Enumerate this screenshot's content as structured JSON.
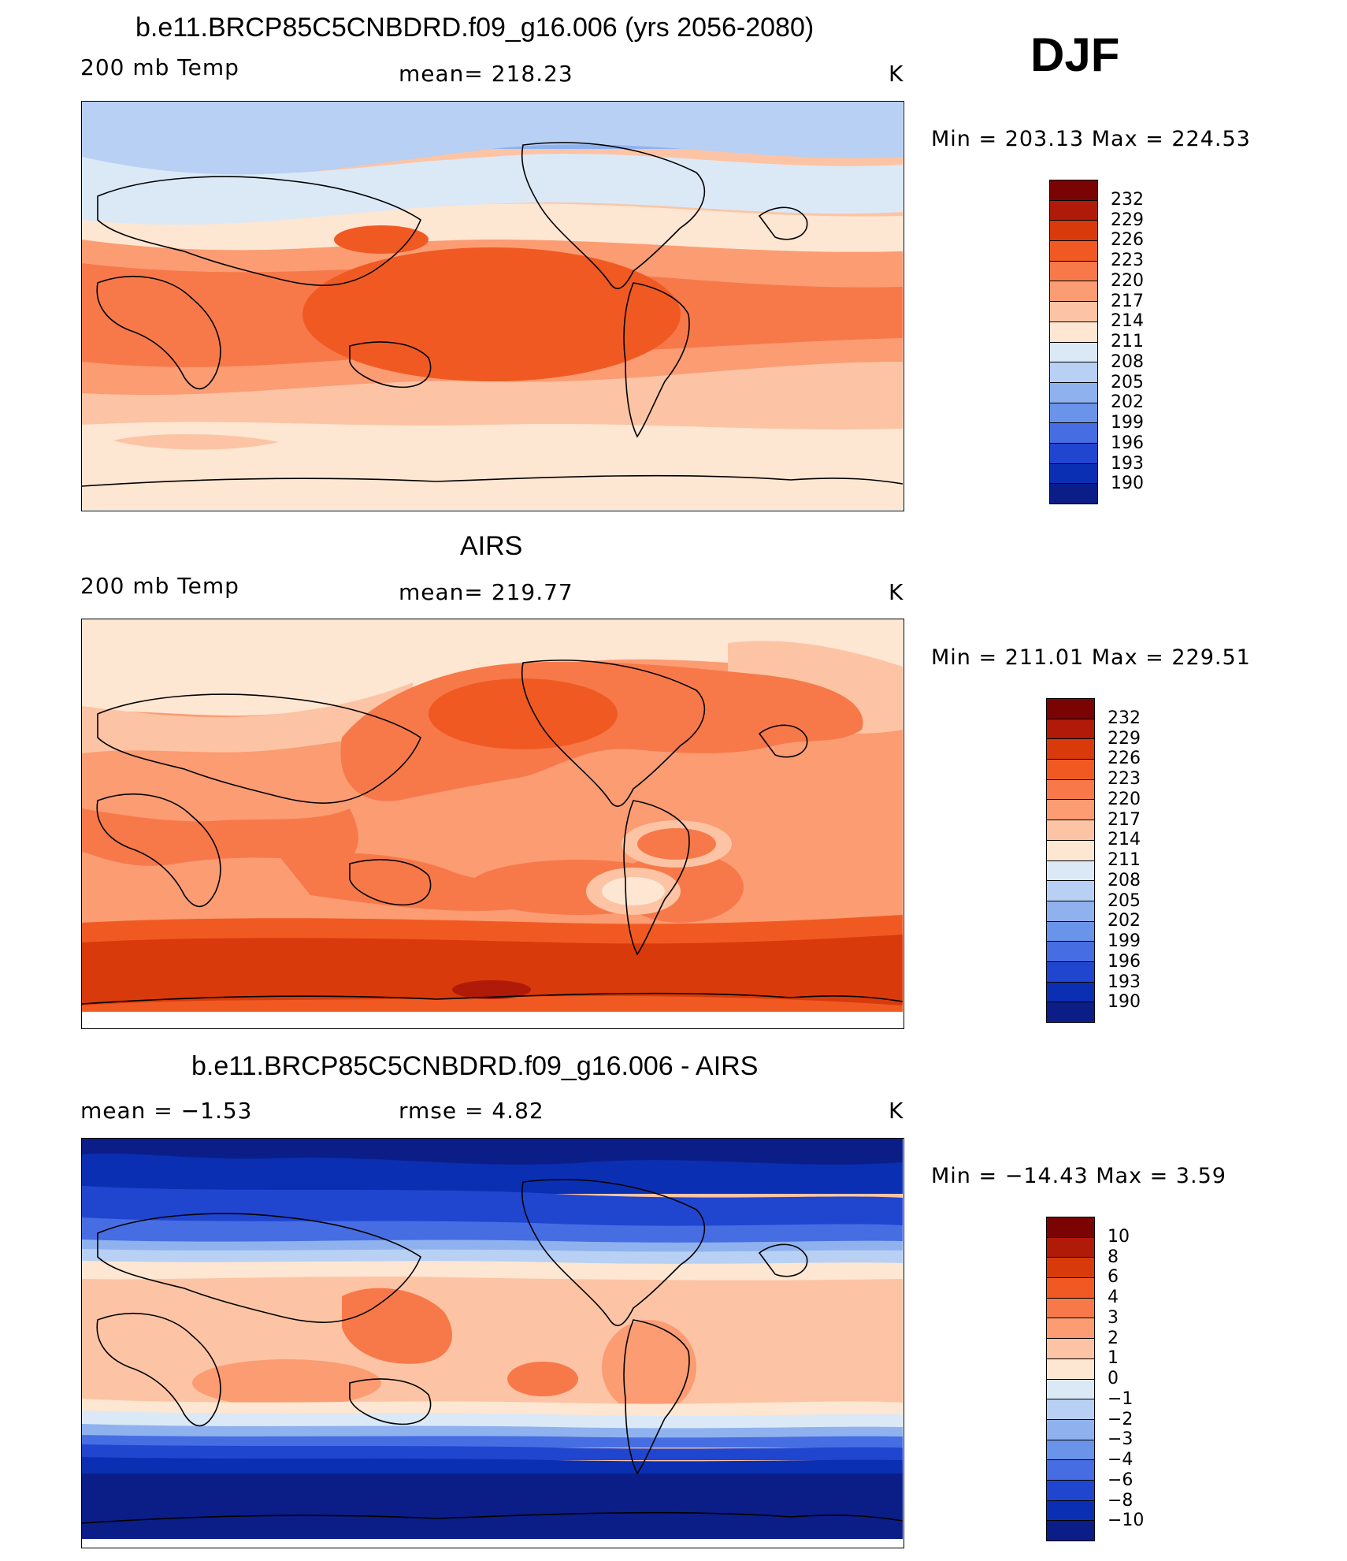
{
  "season": "DJF",
  "panels": [
    {
      "title": "b.e11.BRCP85C5CNBDRD.f09_g16.006 (yrs 2056-2080)",
      "left_label": "200 mb Temp",
      "center_label": "mean=  218.23",
      "units": "K",
      "minmax": "Min  =  203.13  Max  =  224.53",
      "colorbar_ticks": [
        "232",
        "229",
        "226",
        "223",
        "220",
        "217",
        "214",
        "211",
        "208",
        "205",
        "202",
        "199",
        "196",
        "193",
        "190"
      ],
      "colorbar_colors": [
        "#7a0403",
        "#b01a08",
        "#d93a0b",
        "#f05a22",
        "#f7794a",
        "#fb9c73",
        "#fcc4a4",
        "#fde6d2",
        "#dbe9f7",
        "#b7d0f4",
        "#8fb2ef",
        "#6a93ea",
        "#466ee2",
        "#2046d0",
        "#0b2fb2",
        "#0b1d87"
      ]
    },
    {
      "title": "AIRS",
      "left_label": "200 mb Temp",
      "center_label": "mean=  219.77",
      "units": "K",
      "minmax": "Min  =  211.01  Max  =  229.51",
      "colorbar_ticks": [
        "232",
        "229",
        "226",
        "223",
        "220",
        "217",
        "214",
        "211",
        "208",
        "205",
        "202",
        "199",
        "196",
        "193",
        "190"
      ],
      "colorbar_colors": [
        "#7a0403",
        "#b01a08",
        "#d93a0b",
        "#f05a22",
        "#f7794a",
        "#fb9c73",
        "#fcc4a4",
        "#fde6d2",
        "#dbe9f7",
        "#b7d0f4",
        "#8fb2ef",
        "#6a93ea",
        "#466ee2",
        "#2046d0",
        "#0b2fb2",
        "#0b1d87"
      ]
    },
    {
      "title": "b.e11.BRCP85C5CNBDRD.f09_g16.006 - AIRS",
      "left_label": "mean =    −1.53",
      "center_label": "rmse =     4.82",
      "units": "K",
      "minmax": "Min  =  −14.43  Max  =     3.59",
      "colorbar_ticks": [
        "10",
        "8",
        "6",
        "4",
        "3",
        "2",
        "1",
        "0",
        "−1",
        "−2",
        "−3",
        "−4",
        "−6",
        "−8",
        "−10"
      ],
      "colorbar_colors": [
        "#7a0403",
        "#b01a08",
        "#d93a0b",
        "#f05a22",
        "#f7794a",
        "#fb9c73",
        "#fcc4a4",
        "#fde6d2",
        "#dbe9f7",
        "#b7d0f4",
        "#8fb2ef",
        "#6a93ea",
        "#466ee2",
        "#2046d0",
        "#0b2fb2",
        "#0b1d87"
      ]
    }
  ]
}
